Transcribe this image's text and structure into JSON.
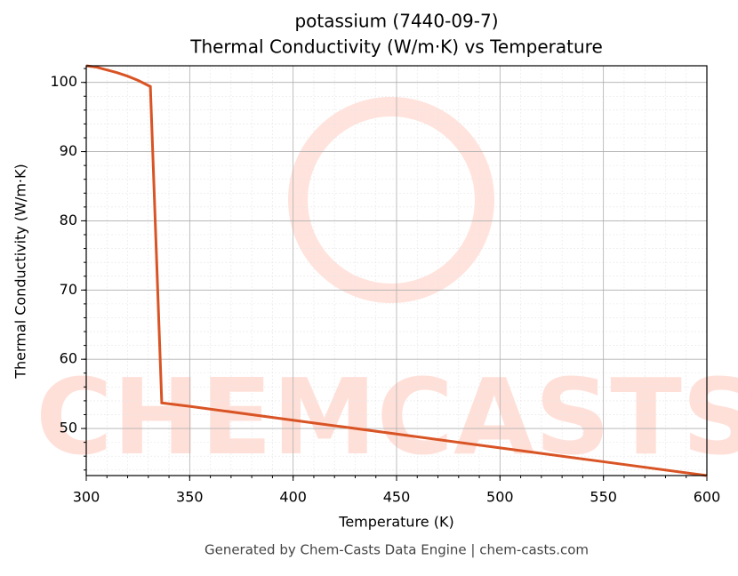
{
  "chart_data": {
    "type": "line",
    "title": "potassium (7440-09-7)",
    "subtitle": "Thermal Conductivity (W/m·K) vs Temperature",
    "x_label": "Temperature (K)",
    "y_label": "Thermal Conductivity (W/m·K)",
    "footer": "Generated by Chem-Casts Data Engine | chem-casts.com",
    "watermark": "CHEMCASTS",
    "x": [
      300,
      305,
      310,
      315,
      320,
      325,
      331,
      336.5,
      350,
      400,
      450,
      500,
      550,
      600
    ],
    "series": [
      {
        "name": "Thermal Conductivity",
        "color": "#d95425",
        "values": [
          102.4,
          102.2,
          101.8,
          101.4,
          100.9,
          100.3,
          99.4,
          53.7,
          53.2,
          51.2,
          49.2,
          47.2,
          45.2,
          43.2
        ]
      }
    ],
    "xlim": [
      300,
      600
    ],
    "xticks": [
      300,
      350,
      400,
      450,
      500,
      550,
      600
    ],
    "ylim": [
      43.2,
      102.4
    ],
    "yticks": [
      50,
      60,
      70,
      80,
      90,
      100
    ],
    "grid": true,
    "minor_divisions_x": 5,
    "minor_divisions_y": 5
  }
}
